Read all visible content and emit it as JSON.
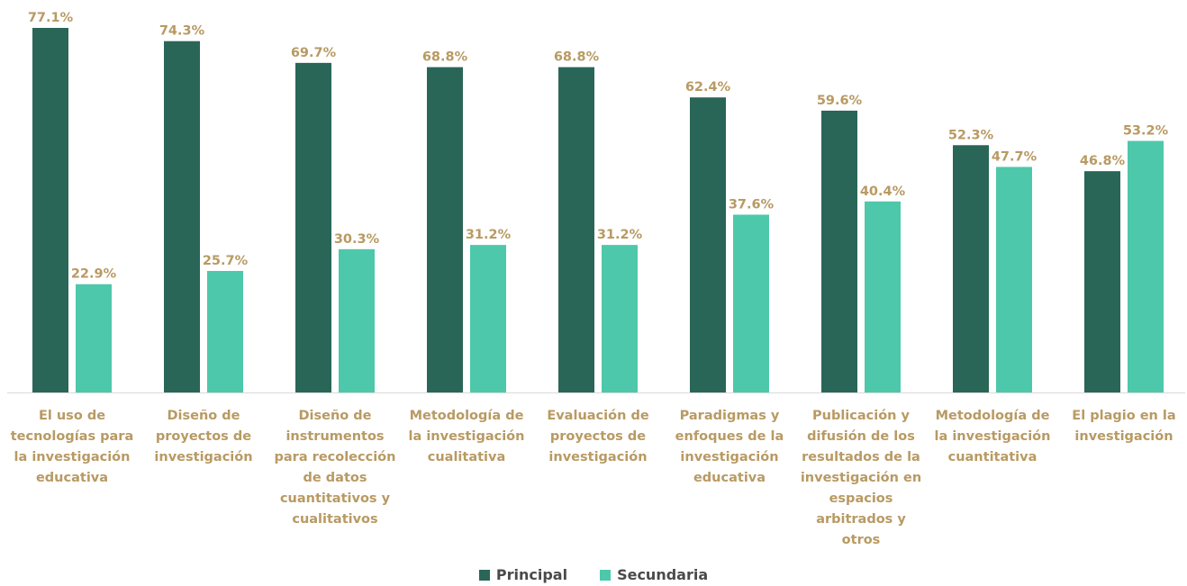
{
  "chart_data": {
    "type": "bar",
    "categories": [
      "El uso de tecnologías para la investigación educativa",
      "Diseño de proyectos de investigación",
      "Diseño de instrumentos para recolección de datos cuantitativos y cualitativos",
      "Metodología de la investigación cualitativa",
      "Evaluación de proyectos de investigación",
      "Paradigmas y enfoques de la investigación educativa",
      "Publicación y difusión de los resultados de la investigación en espacios arbitrados y otros",
      "Metodología de la investigación cuantitativa",
      "El plagio en la investigación"
    ],
    "series": [
      {
        "name": "Principal",
        "values": [
          77.1,
          74.3,
          69.7,
          68.8,
          68.8,
          62.4,
          59.6,
          52.3,
          46.8
        ]
      },
      {
        "name": "Secundaria",
        "values": [
          22.9,
          25.7,
          30.3,
          31.2,
          31.2,
          37.6,
          40.4,
          47.7,
          53.2
        ]
      }
    ],
    "value_labels": {
      "Principal": [
        "77.1%",
        "74.3%",
        "69.7%",
        "68.8%",
        "68.8%",
        "62.4%",
        "59.6%",
        "52.3%",
        "46.8%"
      ],
      "Secundaria": [
        "22.9%",
        "25.7%",
        "30.3%",
        "31.2%",
        "31.2%",
        "37.6%",
        "40.4%",
        "47.7%",
        "53.2%"
      ]
    },
    "colors": {
      "Principal": "#2a6657",
      "Secundaria": "#4ec8aa",
      "labels": "#b89a63",
      "axis": "#d9d9d9"
    },
    "ylim": [
      0,
      77.1
    ],
    "grid": false,
    "legend": "bottom-center",
    "title": "",
    "xlabel": "",
    "ylabel": ""
  },
  "legend": {
    "principal": "Principal",
    "secundaria": "Secundaria"
  }
}
